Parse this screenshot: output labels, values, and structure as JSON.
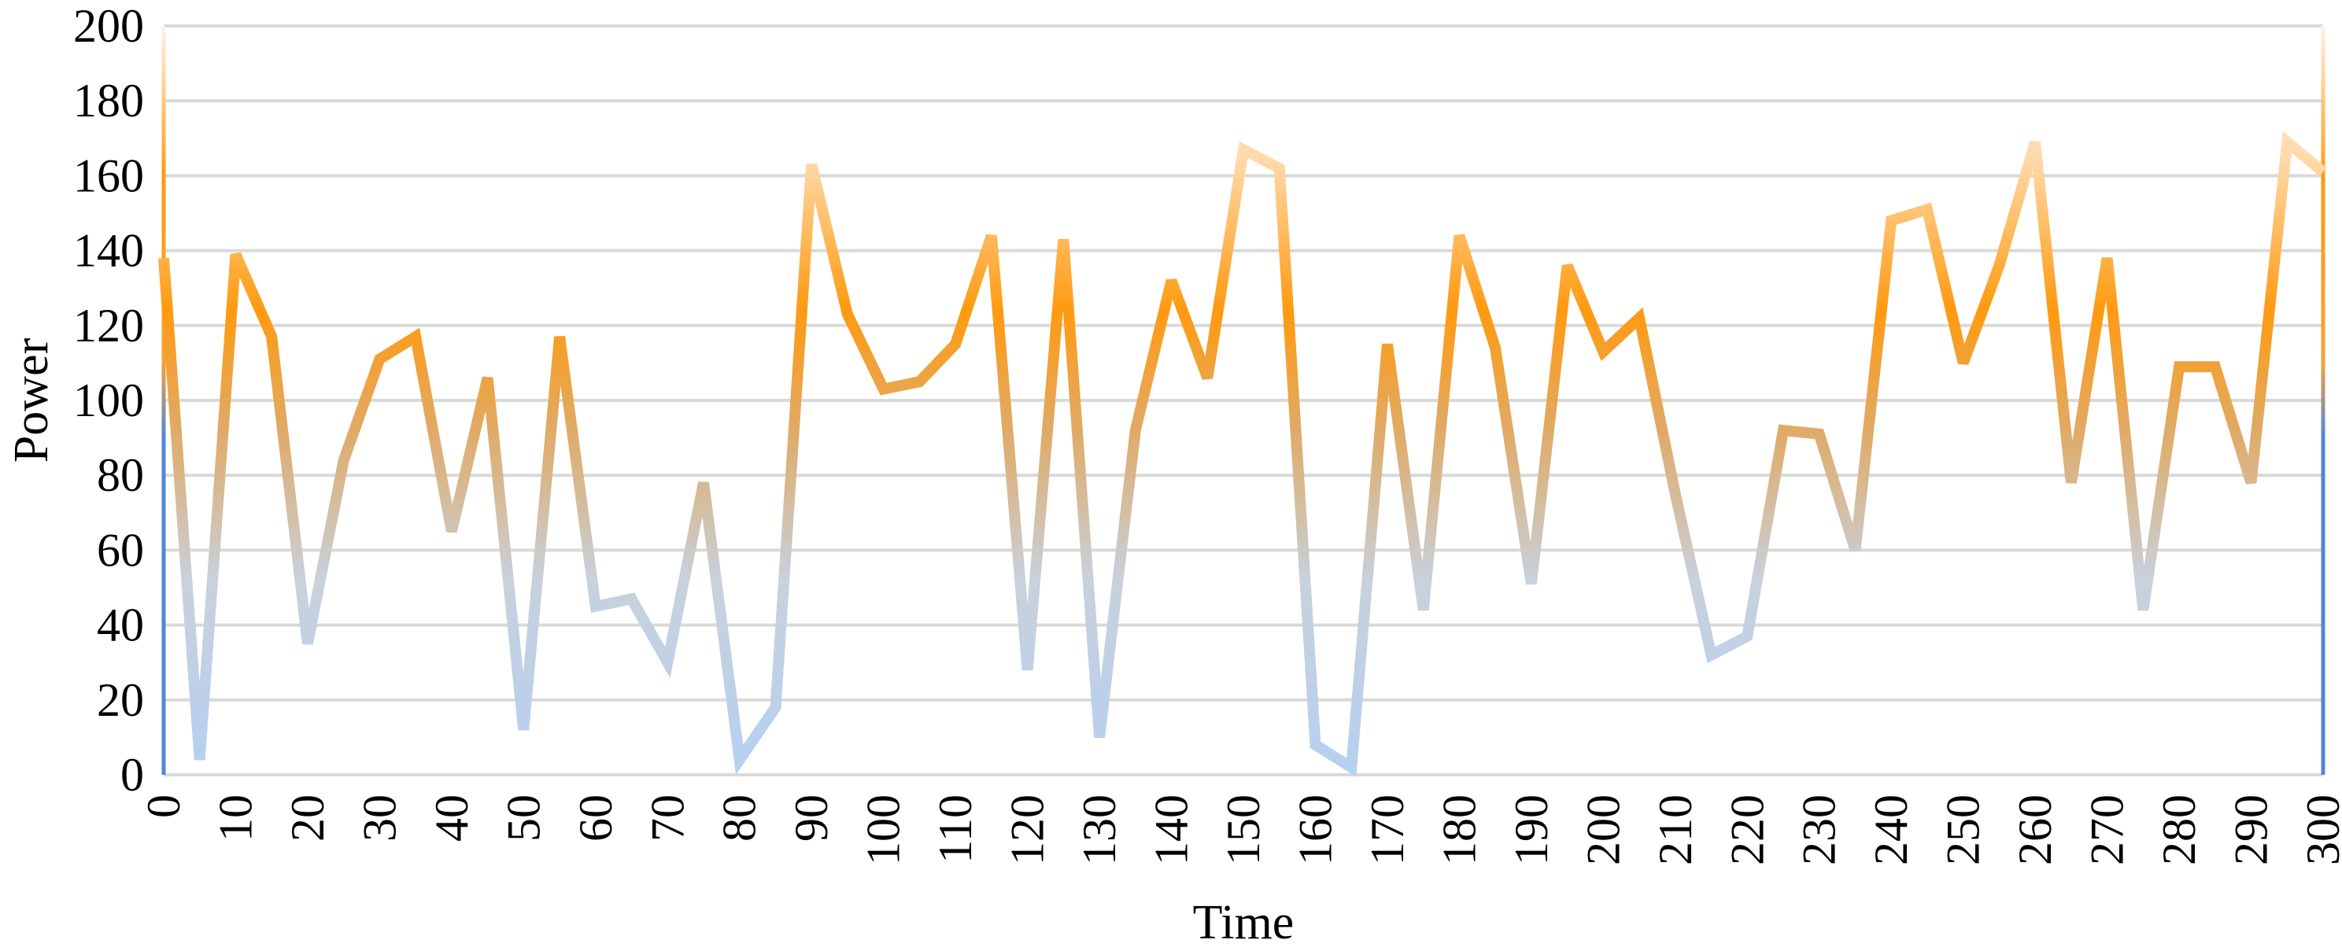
{
  "chart_data": {
    "type": "line",
    "xlabel": "Time",
    "ylabel": "Power",
    "xlim": [
      0,
      300
    ],
    "ylim": [
      0,
      200
    ],
    "x_ticks": [
      0,
      10,
      20,
      30,
      40,
      50,
      60,
      70,
      80,
      90,
      100,
      110,
      120,
      130,
      140,
      150,
      160,
      170,
      180,
      190,
      200,
      210,
      220,
      230,
      240,
      250,
      260,
      270,
      280,
      290,
      300
    ],
    "y_ticks": [
      0,
      20,
      40,
      60,
      80,
      100,
      120,
      140,
      160,
      180,
      200
    ],
    "grid": "horizontal",
    "legend": "none",
    "series": [
      {
        "x": [
          0,
          5,
          10,
          15,
          20,
          25,
          30,
          35,
          40,
          45,
          50,
          55,
          60,
          65,
          70,
          75,
          80,
          85,
          90,
          95,
          100,
          105,
          110,
          115,
          120,
          125,
          130,
          135,
          140,
          145,
          150,
          155,
          160,
          165,
          170,
          175,
          180,
          185,
          190,
          195,
          200,
          205,
          210,
          215,
          220,
          225,
          230,
          235,
          240,
          245,
          250,
          255,
          260,
          265,
          270,
          275,
          280,
          285,
          290,
          295,
          300
        ],
        "values": [
          138,
          4,
          139,
          117,
          35,
          84,
          111,
          117,
          65,
          106,
          12,
          117,
          45,
          47,
          30,
          78,
          4,
          18,
          163,
          123,
          103,
          105,
          115,
          144,
          28,
          143,
          10,
          92,
          132,
          106,
          167,
          162,
          8,
          2,
          115,
          44,
          144,
          114,
          51,
          136,
          113,
          122,
          75,
          32,
          37,
          92,
          91,
          60,
          148,
          151,
          110,
          136,
          169,
          78,
          138,
          44,
          109,
          109,
          78,
          169,
          161
        ]
      }
    ],
    "colors": {
      "high": "#ffeedd",
      "upper": "#ff9a10",
      "mid": "#d9b48f",
      "low": "#b6d0f2",
      "left_edge": "#4f86d6",
      "gridline": "#d9d9d9"
    }
  }
}
